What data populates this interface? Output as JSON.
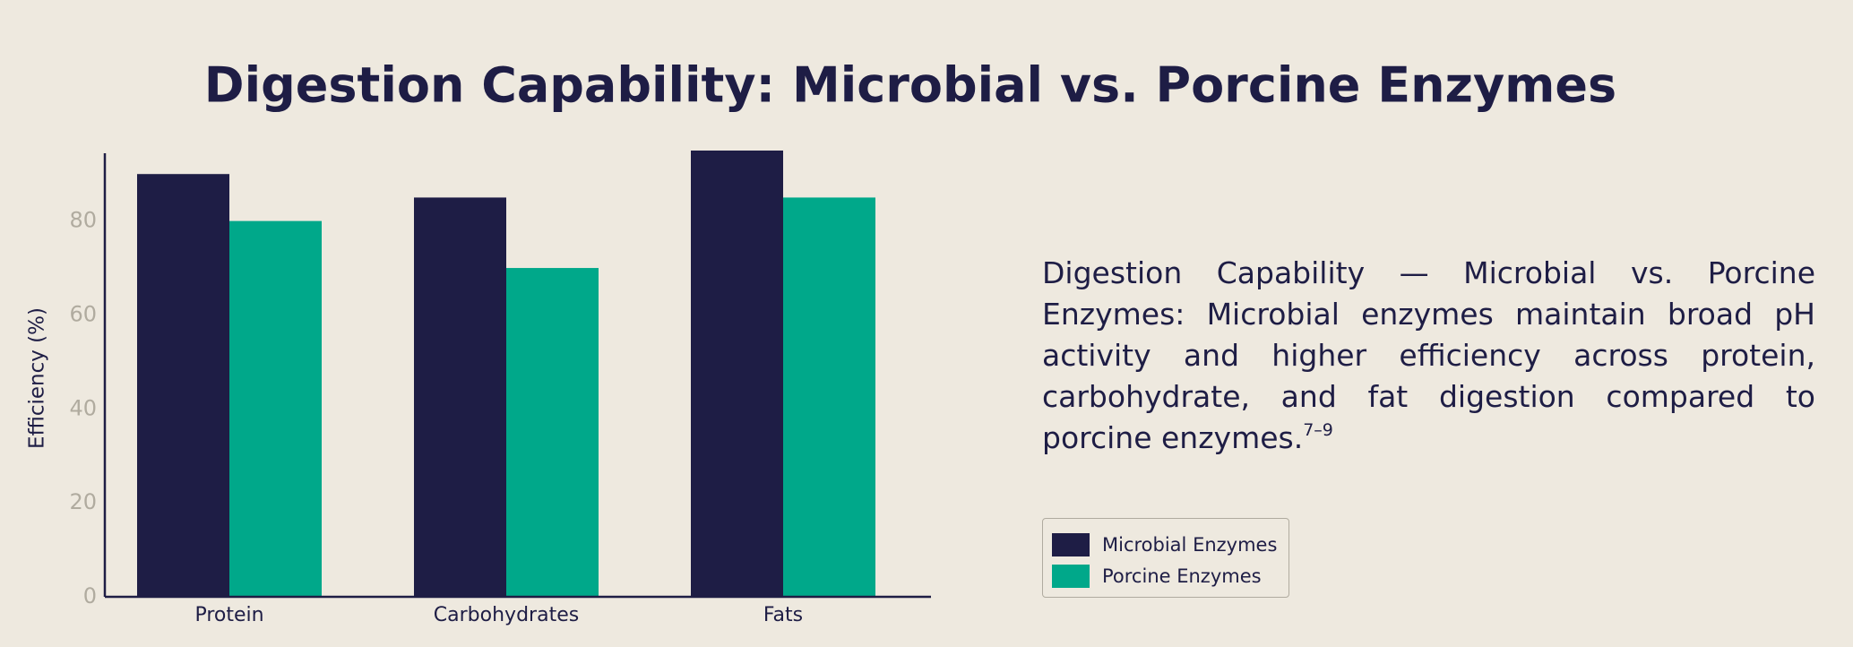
{
  "chart_data": {
    "type": "bar",
    "title": "Digestion Capability: Microbial vs. Porcine Enzymes",
    "ylabel": "Efficiency (%)",
    "categories": [
      "Protein",
      "Carbohydrates",
      "Fats"
    ],
    "series": [
      {
        "name": "Microbial Enzymes",
        "color": "#1e1d45",
        "values": [
          90,
          85,
          95
        ]
      },
      {
        "name": "Porcine Enzymes",
        "color": "#00a88a",
        "values": [
          80,
          70,
          85
        ]
      }
    ],
    "ylim": [
      0,
      95
    ],
    "yticks": [
      0,
      20,
      40,
      60,
      80
    ],
    "grid": false,
    "legend": "lower right"
  },
  "description": {
    "text": "Digestion Capability — Microbial vs. Porcine Enzymes: Microbial enzymes maintain broad pH activity and higher efficiency across protein, carbohydrate, and fat digestion compared to porcine enzymes.",
    "superscript": "7–9"
  }
}
